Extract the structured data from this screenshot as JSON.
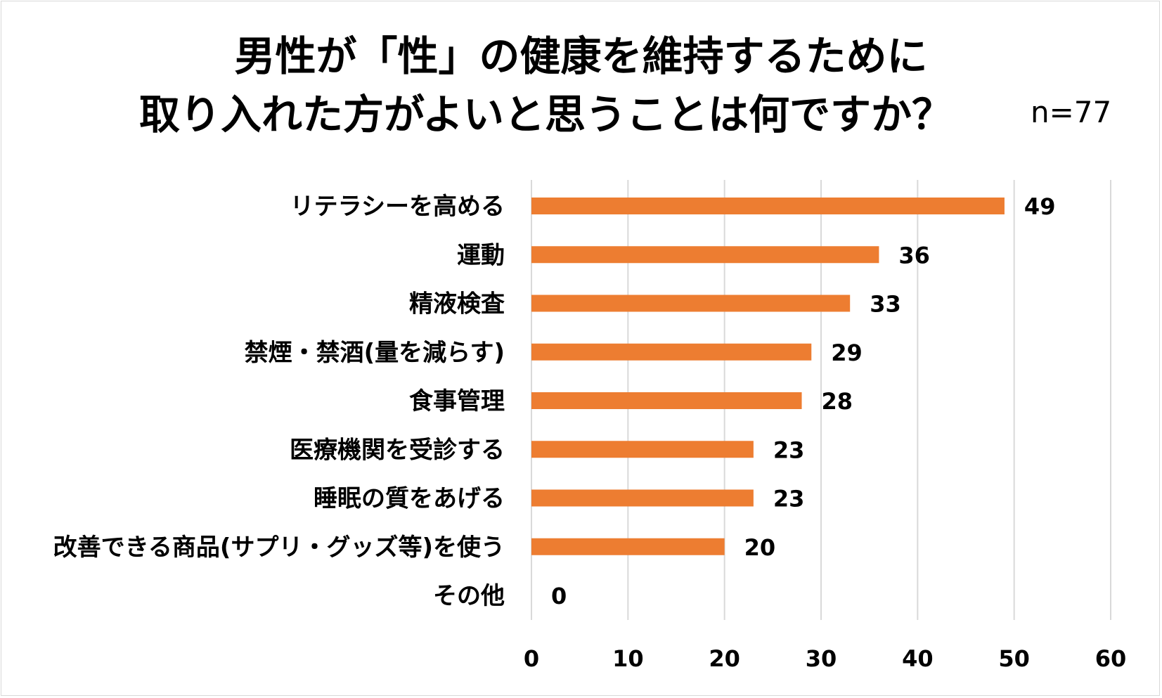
{
  "chart_data": {
    "type": "bar",
    "orientation": "horizontal",
    "title": [
      "男性が「性」の健康を維持するために",
      "取り入れた方がよいと思うことは何ですか？"
    ],
    "annotation": "n=77",
    "categories": [
      "リテラシーを高める",
      "運動",
      "精液検査",
      "禁煙・禁酒(量を減らす)",
      "食事管理",
      "医療機関を受診する",
      "睡眠の質をあげる",
      "改善できる商品(サプリ・グッズ等)を使う",
      "その他"
    ],
    "values": [
      49,
      36,
      33,
      29,
      28,
      23,
      23,
      20,
      0
    ],
    "xlim": [
      0,
      60
    ],
    "xticks": [
      0,
      10,
      20,
      30,
      40,
      50,
      60
    ],
    "grid": true,
    "bar_color": "#ed7d31",
    "grid_color": "#d9d9d9"
  }
}
